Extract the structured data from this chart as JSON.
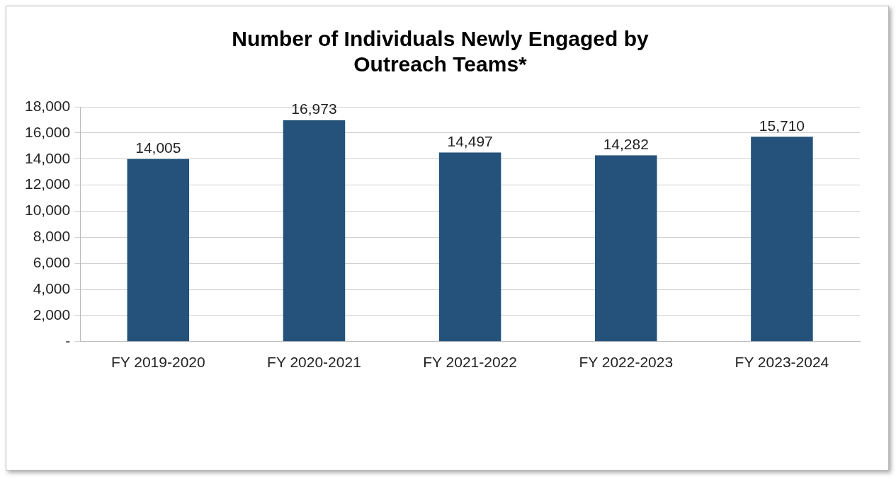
{
  "chart_data": {
    "type": "bar",
    "title": "Number of Individuals Newly Engaged by Outreach Teams*",
    "categories": [
      "FY 2019-2020",
      "FY 2020-2021",
      "FY 2021-2022",
      "FY 2022-2023",
      "FY 2023-2024"
    ],
    "values": [
      14005,
      16973,
      14497,
      14282,
      15710
    ],
    "value_labels": [
      "14,005",
      "16,973",
      "14,497",
      "14,282",
      "15,710"
    ],
    "color": "#24527a",
    "ylim": [
      0,
      18000
    ],
    "yticks": [
      {
        "value": 0,
        "label": "-"
      },
      {
        "value": 2000,
        "label": "2,000"
      },
      {
        "value": 4000,
        "label": "4,000"
      },
      {
        "value": 6000,
        "label": "6,000"
      },
      {
        "value": 8000,
        "label": "8,000"
      },
      {
        "value": 10000,
        "label": "10,000"
      },
      {
        "value": 12000,
        "label": "12,000"
      },
      {
        "value": 14000,
        "label": "14,000"
      },
      {
        "value": 16000,
        "label": "16,000"
      },
      {
        "value": 18000,
        "label": "18,000"
      }
    ],
    "grid": "y",
    "legend": false
  }
}
